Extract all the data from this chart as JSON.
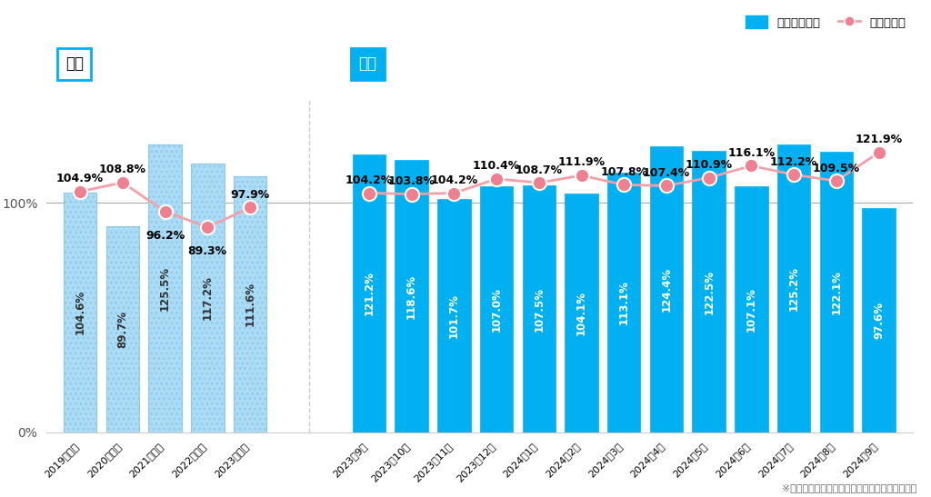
{
  "annual_categories": [
    "2019年平均",
    "2020年平均",
    "2021年平均",
    "2022年平均",
    "2023年平均"
  ],
  "annual_bar_values": [
    104.6,
    89.7,
    125.5,
    117.2,
    111.6
  ],
  "annual_line_values": [
    104.9,
    108.8,
    96.2,
    89.3,
    97.9
  ],
  "monthly_categories": [
    "2023年9月",
    "2023年10月",
    "2023年11月",
    "2023年12月",
    "2024年1月",
    "2024年2月",
    "2024年3月",
    "2024年4月",
    "2024年5月",
    "2024年6月",
    "2024年7月",
    "2024年8月",
    "2024年9月"
  ],
  "monthly_bar_values": [
    121.2,
    118.6,
    101.7,
    107.0,
    107.5,
    104.1,
    113.1,
    124.4,
    122.5,
    107.1,
    125.2,
    122.1,
    97.6
  ],
  "monthly_line_values": [
    104.2,
    103.8,
    104.2,
    110.4,
    108.7,
    111.9,
    107.8,
    107.4,
    110.9,
    116.1,
    112.2,
    109.5,
    121.9
  ],
  "annual_bar_color": "#aadcf5",
  "monthly_bar_color": "#00b0f0",
  "line_color": "#f4a0a8",
  "line_marker_color": "#f08090",
  "bar_text_color_annual": "#333333",
  "bar_text_color_monthly": "#ffffff",
  "ylim_min": 0,
  "ylim_max": 145,
  "background_color": "#ffffff",
  "legend_bar_label": "求人件数推移",
  "legend_line_label": "応募数推移",
  "annual_section_label": "年間",
  "monthly_section_label": "月間",
  "footnote": "※該当年の各月前年同月比について平均値を算出",
  "annual_line_label_offsets": [
    3,
    3,
    -8,
    -8,
    3
  ],
  "monthly_line_label_offsets": [
    3,
    3,
    3,
    3,
    3,
    3,
    3,
    3,
    3,
    3,
    3,
    3,
    3
  ]
}
